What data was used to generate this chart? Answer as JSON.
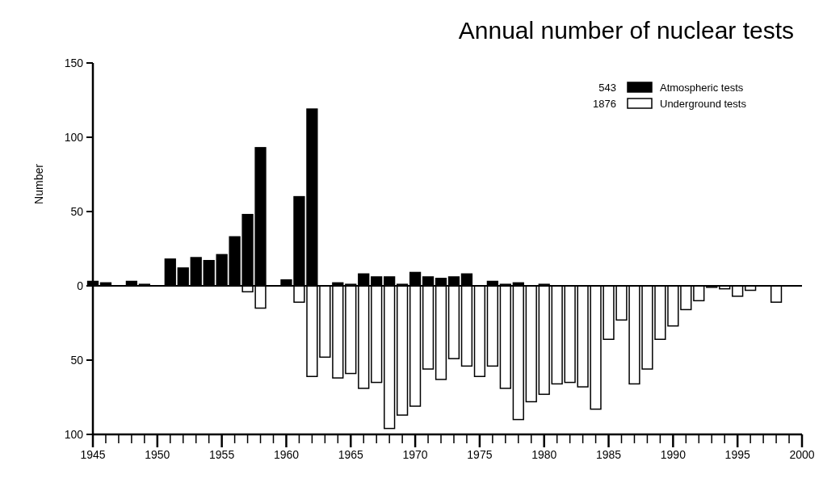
{
  "chart_data": {
    "type": "bar",
    "title": "Annual number of nuclear tests",
    "ylabel": "Number",
    "series": [
      {
        "name": "Atmospheric tests",
        "color": "#000000",
        "x": [
          1945,
          1946,
          1948,
          1949,
          1951,
          1952,
          1953,
          1954,
          1955,
          1956,
          1957,
          1958,
          1960,
          1961,
          1962,
          1964,
          1965,
          1966,
          1967,
          1968,
          1969,
          1970,
          1971,
          1972,
          1973,
          1974,
          1976,
          1977,
          1978,
          1980
        ],
        "values": [
          3,
          2,
          3,
          1,
          18,
          12,
          19,
          17,
          21,
          33,
          48,
          93,
          4,
          60,
          119,
          2,
          1,
          8,
          6,
          6,
          1,
          9,
          6,
          5,
          6,
          8,
          3,
          1,
          2,
          1
        ]
      },
      {
        "name": "Underground tests",
        "color": "#ffffff",
        "x": [
          1957,
          1958,
          1961,
          1962,
          1963,
          1964,
          1965,
          1966,
          1967,
          1968,
          1969,
          1970,
          1971,
          1972,
          1973,
          1974,
          1975,
          1976,
          1977,
          1978,
          1979,
          1980,
          1981,
          1982,
          1983,
          1984,
          1985,
          1986,
          1987,
          1988,
          1989,
          1990,
          1991,
          1992,
          1993,
          1994,
          1995,
          1996,
          1998
        ],
        "values": [
          -4,
          -15,
          -11,
          -61,
          -48,
          -62,
          -59,
          -69,
          -65,
          -96,
          -87,
          -81,
          -56,
          -63,
          -49,
          -54,
          -61,
          -54,
          -69,
          -90,
          -78,
          -73,
          -66,
          -65,
          -68,
          -83,
          -36,
          -23,
          -66,
          -56,
          -36,
          -27,
          -16,
          -10,
          -1,
          -2,
          -7,
          -3,
          -11
        ]
      }
    ],
    "annotations": [
      "543",
      "1876"
    ],
    "xlim": [
      1945,
      2000
    ],
    "xticks": [
      1945,
      {
        "value": 1946,
        "label": null
      },
      {
        "value": 1947,
        "label": null
      },
      {
        "value": 1948,
        "label": null
      },
      {
        "value": 1949,
        "label": null
      },
      1950,
      {
        "value": 1951,
        "label": null
      },
      {
        "value": 1952,
        "label": null
      },
      {
        "value": 1953,
        "label": null
      },
      {
        "value": 1954,
        "label": null
      },
      1955,
      {
        "value": 1956,
        "label": null
      },
      {
        "value": 1957,
        "label": null
      },
      {
        "value": 1958,
        "label": null
      },
      {
        "value": 1959,
        "label": null
      },
      1960,
      {
        "value": 1961,
        "label": null
      },
      {
        "value": 1962,
        "label": null
      },
      {
        "value": 1963,
        "label": null
      },
      {
        "value": 1964,
        "label": null
      },
      1965,
      {
        "value": 1966,
        "label": null
      },
      {
        "value": 1967,
        "label": null
      },
      {
        "value": 1968,
        "label": null
      },
      {
        "value": 1969,
        "label": null
      },
      1970,
      {
        "value": 1971,
        "label": null
      },
      {
        "value": 1972,
        "label": null
      },
      {
        "value": 1973,
        "label": null
      },
      {
        "value": 1974,
        "label": null
      },
      1975,
      {
        "value": 1976,
        "label": null
      },
      {
        "value": 1977,
        "label": null
      },
      {
        "value": 1978,
        "label": null
      },
      {
        "value": 1979,
        "label": null
      },
      1980,
      {
        "value": 1981,
        "label": null
      },
      {
        "value": 1982,
        "label": null
      },
      {
        "value": 1983,
        "label": null
      },
      {
        "value": 1984,
        "label": null
      },
      1985,
      {
        "value": 1986,
        "label": null
      },
      {
        "value": 1987,
        "label": null
      },
      {
        "value": 1988,
        "label": null
      },
      {
        "value": 1989,
        "label": null
      },
      1990,
      {
        "value": 1991,
        "label": null
      },
      {
        "value": 1992,
        "label": null
      },
      {
        "value": 1993,
        "label": null
      },
      {
        "value": 1994,
        "label": null
      },
      1995,
      {
        "value": 1996,
        "label": null
      },
      {
        "value": 1997,
        "label": null
      },
      {
        "value": 1998,
        "label": null
      },
      {
        "value": 1999,
        "label": null
      },
      2000
    ],
    "ylim": [
      -100,
      150
    ],
    "yticks": [
      {
        "value": -100,
        "label": "100"
      },
      {
        "value": -50,
        "label": "50"
      },
      0,
      50,
      100,
      150
    ],
    "legend": "top right"
  }
}
